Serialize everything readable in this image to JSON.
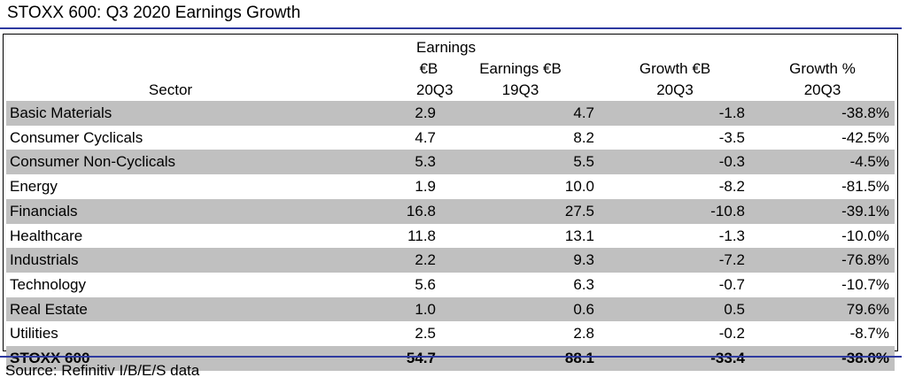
{
  "title": "STOXX 600: Q3 2020 Earnings Growth",
  "colors": {
    "accent_rule": "#2e3aa0",
    "row_shade": "#c0c0c0"
  },
  "table": {
    "headers": [
      {
        "line1": "",
        "line2": "Sector"
      },
      {
        "line1": "Earnings €B",
        "line2": "20Q3"
      },
      {
        "line1": "Earnings €B",
        "line2": "19Q3"
      },
      {
        "line1": "Growth €B",
        "line2": "20Q3"
      },
      {
        "line1": "Growth %",
        "line2": "20Q3"
      }
    ],
    "rows": [
      [
        "Basic Materials",
        "2.9",
        "4.7",
        "-1.8",
        "-38.8%"
      ],
      [
        "Consumer Cyclicals",
        "4.7",
        "8.2",
        "-3.5",
        "-42.5%"
      ],
      [
        "Consumer Non-Cyclicals",
        "5.3",
        "5.5",
        "-0.3",
        "-4.5%"
      ],
      [
        "Energy",
        "1.9",
        "10.0",
        "-8.2",
        "-81.5%"
      ],
      [
        "Financials",
        "16.8",
        "27.5",
        "-10.8",
        "-39.1%"
      ],
      [
        "Healthcare",
        "11.8",
        "13.1",
        "-1.3",
        "-10.0%"
      ],
      [
        "Industrials",
        "2.2",
        "9.3",
        "-7.2",
        "-76.8%"
      ],
      [
        "Technology",
        "5.6",
        "6.3",
        "-0.7",
        "-10.7%"
      ],
      [
        "Real Estate",
        "1.0",
        "0.6",
        "0.5",
        "79.6%"
      ],
      [
        "Utilities",
        "2.5",
        "2.8",
        "-0.2",
        "-8.7%"
      ],
      [
        "STOXX 600",
        "54.7",
        "88.1",
        "-33.4",
        "-38.0%"
      ]
    ]
  },
  "source": "Source: Refinitiv I/B/E/S data"
}
